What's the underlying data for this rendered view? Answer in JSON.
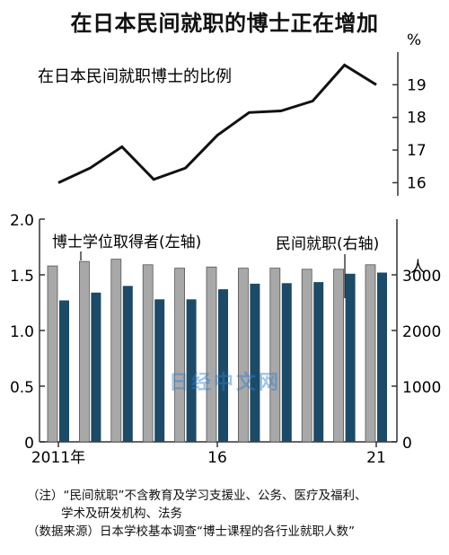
{
  "title": "在日本民间就职的博士正在增加",
  "watermark": "日经中文网",
  "notes": {
    "line1": "（注）“民间就职”不含教育及学习支援业、公务、医疗及福利、",
    "line2": "学术及研发机构、法务",
    "line3": "（数据来源）日本学校基本调查“博士课程的各行业就职人数”"
  },
  "chart_data": [
    {
      "type": "line",
      "title": "在日本民间就职博士的比例",
      "unit": "%",
      "x": [
        2011,
        2012,
        2013,
        2014,
        2015,
        2016,
        2017,
        2018,
        2019,
        2020,
        2021
      ],
      "values": [
        16.0,
        16.45,
        17.1,
        16.1,
        16.45,
        17.45,
        18.15,
        18.2,
        18.5,
        19.6,
        19.0
      ],
      "ylim": [
        15.6,
        20.0
      ],
      "yticks": [
        "16",
        "17",
        "18",
        "19"
      ],
      "color": "#111111"
    },
    {
      "type": "bar",
      "categories": [
        "2011",
        "2012",
        "2013",
        "2014",
        "2015",
        "2016",
        "2017",
        "2018",
        "2019",
        "2020",
        "2021"
      ],
      "xtick_labels": [
        "2011年",
        "",
        "",
        "",
        "",
        "16",
        "",
        "",
        "",
        "",
        "21"
      ],
      "left_axis": {
        "ylim": [
          0,
          2.0
        ],
        "ticks": [
          "0",
          "0.5",
          "1.0",
          "1.5",
          "2.0"
        ]
      },
      "right_axis": {
        "ylim": [
          0,
          4000
        ],
        "ticks": [
          "0",
          "1000",
          "2000",
          "3000"
        ],
        "unit": "人"
      },
      "series": [
        {
          "name": "博士学位取得者(左轴)",
          "axis": "left",
          "color": "#a8a8a8",
          "values": [
            1.58,
            1.62,
            1.64,
            1.59,
            1.56,
            1.57,
            1.56,
            1.56,
            1.55,
            1.55,
            1.59
          ]
        },
        {
          "name": "民间就职(右轴)",
          "axis": "right",
          "color": "#1d4a66",
          "values": [
            2540,
            2680,
            2800,
            2560,
            2560,
            2740,
            2840,
            2850,
            2870,
            3020,
            3040
          ]
        }
      ]
    }
  ]
}
